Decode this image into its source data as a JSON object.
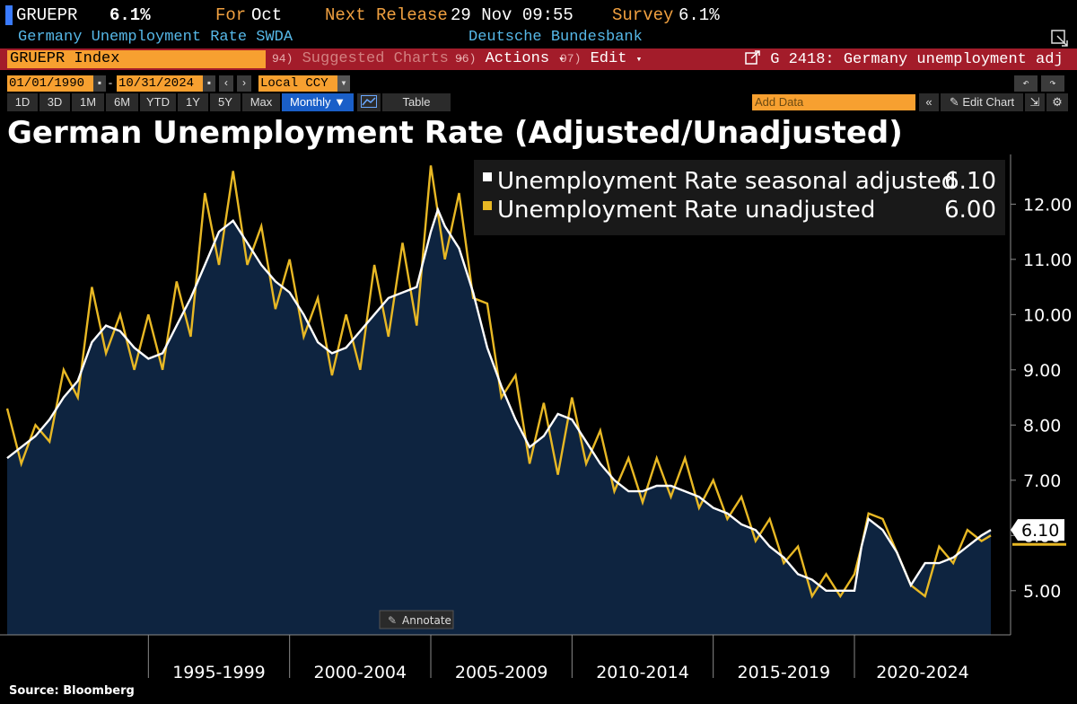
{
  "header": {
    "ticker": "GRUEPR",
    "last_value": "6.1%",
    "for_label": "For",
    "for_value": "Oct",
    "next_release_label": "Next Release",
    "next_release_value": "29 Nov 09:55",
    "survey_label": "Survey",
    "survey_value": "6.1%",
    "description": "Germany Unemployment Rate SWDA",
    "source_name": "Deutsche Bundesbank"
  },
  "command_bar": {
    "security": "GRUEPR Index",
    "suggested_num": "94)",
    "suggested_label": "Suggested Charts",
    "actions_num": "96)",
    "actions_label": "Actions",
    "edit_num": "97)",
    "edit_label": "Edit",
    "graph_label": "G 2418: Germany unemployment adj"
  },
  "date_bar": {
    "start": "01/01/1990",
    "end": "10/31/2024",
    "currency": "Local CCY"
  },
  "period_bar": {
    "periods": [
      "1D",
      "3D",
      "1M",
      "6M",
      "YTD",
      "1Y",
      "5Y",
      "Max"
    ],
    "frequency": "Monthly",
    "table_label": "Table",
    "add_data_placeholder": "Add Data",
    "edit_chart_label": "Edit Chart"
  },
  "annotate_label": "Annotate",
  "source": "Source: Bloomberg",
  "colors": {
    "adjusted": "#ffffff",
    "unadjusted": "#e8b824",
    "area_fill": "#0e2440",
    "command_bar": "#a31c2a",
    "field": "#f7a030"
  },
  "chart_data": {
    "type": "line",
    "title": "German Unemployment Rate (Adjusted/Unadjusted)",
    "x_range": [
      1990.0,
      2024.83
    ],
    "ylim": [
      4.2,
      12.9
    ],
    "y_ticks": [
      5.0,
      6.0,
      7.0,
      8.0,
      9.0,
      10.0,
      11.0,
      12.0
    ],
    "x_tick_labels": [
      "1995-1999",
      "2000-2004",
      "2005-2009",
      "2010-2014",
      "2015-2019",
      "2020-2024"
    ],
    "x_tick_boundaries": [
      1995,
      2000,
      2005,
      2010,
      2015,
      2020
    ],
    "legend_position": "top-right",
    "grid": false,
    "last_value_label": "6.10",
    "series": [
      {
        "name": "Unemployment Rate seasonal adjusted",
        "last": "6.10",
        "color": "#ffffff",
        "area": true,
        "points": [
          [
            1990.0,
            7.4
          ],
          [
            1990.5,
            7.6
          ],
          [
            1991.0,
            7.8
          ],
          [
            1991.5,
            8.1
          ],
          [
            1992.0,
            8.5
          ],
          [
            1992.5,
            8.8
          ],
          [
            1993.0,
            9.5
          ],
          [
            1993.5,
            9.8
          ],
          [
            1994.0,
            9.7
          ],
          [
            1994.5,
            9.4
          ],
          [
            1995.0,
            9.2
          ],
          [
            1995.5,
            9.3
          ],
          [
            1996.0,
            9.8
          ],
          [
            1996.5,
            10.3
          ],
          [
            1997.0,
            10.9
          ],
          [
            1997.5,
            11.5
          ],
          [
            1998.0,
            11.7
          ],
          [
            1998.5,
            11.3
          ],
          [
            1999.0,
            10.9
          ],
          [
            1999.5,
            10.6
          ],
          [
            2000.0,
            10.4
          ],
          [
            2000.5,
            10.0
          ],
          [
            2001.0,
            9.5
          ],
          [
            2001.5,
            9.3
          ],
          [
            2002.0,
            9.4
          ],
          [
            2002.5,
            9.7
          ],
          [
            2003.0,
            10.0
          ],
          [
            2003.5,
            10.3
          ],
          [
            2004.0,
            10.4
          ],
          [
            2004.5,
            10.5
          ],
          [
            2005.0,
            11.5
          ],
          [
            2005.25,
            11.9
          ],
          [
            2005.5,
            11.6
          ],
          [
            2006.0,
            11.2
          ],
          [
            2006.5,
            10.4
          ],
          [
            2007.0,
            9.4
          ],
          [
            2007.5,
            8.7
          ],
          [
            2008.0,
            8.1
          ],
          [
            2008.5,
            7.6
          ],
          [
            2009.0,
            7.8
          ],
          [
            2009.5,
            8.2
          ],
          [
            2010.0,
            8.1
          ],
          [
            2010.5,
            7.7
          ],
          [
            2011.0,
            7.3
          ],
          [
            2011.5,
            7.0
          ],
          [
            2012.0,
            6.8
          ],
          [
            2012.5,
            6.8
          ],
          [
            2013.0,
            6.9
          ],
          [
            2013.5,
            6.9
          ],
          [
            2014.0,
            6.8
          ],
          [
            2014.5,
            6.7
          ],
          [
            2015.0,
            6.5
          ],
          [
            2015.5,
            6.4
          ],
          [
            2016.0,
            6.2
          ],
          [
            2016.5,
            6.1
          ],
          [
            2017.0,
            5.8
          ],
          [
            2017.5,
            5.6
          ],
          [
            2018.0,
            5.3
          ],
          [
            2018.5,
            5.2
          ],
          [
            2019.0,
            5.0
          ],
          [
            2019.5,
            5.0
          ],
          [
            2020.0,
            5.0
          ],
          [
            2020.25,
            5.8
          ],
          [
            2020.5,
            6.3
          ],
          [
            2021.0,
            6.1
          ],
          [
            2021.5,
            5.7
          ],
          [
            2022.0,
            5.1
          ],
          [
            2022.5,
            5.5
          ],
          [
            2023.0,
            5.5
          ],
          [
            2023.5,
            5.6
          ],
          [
            2024.0,
            5.8
          ],
          [
            2024.5,
            6.0
          ],
          [
            2024.83,
            6.1
          ]
        ]
      },
      {
        "name": "Unemployment Rate unadjusted",
        "last": "6.00",
        "color": "#e8b824",
        "area": false,
        "points": [
          [
            1990.0,
            8.3
          ],
          [
            1990.5,
            7.3
          ],
          [
            1991.0,
            8.0
          ],
          [
            1991.5,
            7.7
          ],
          [
            1992.0,
            9.0
          ],
          [
            1992.5,
            8.5
          ],
          [
            1993.0,
            10.5
          ],
          [
            1993.5,
            9.3
          ],
          [
            1994.0,
            10.0
          ],
          [
            1994.5,
            9.0
          ],
          [
            1995.0,
            10.0
          ],
          [
            1995.5,
            9.0
          ],
          [
            1996.0,
            10.6
          ],
          [
            1996.5,
            9.6
          ],
          [
            1997.0,
            12.2
          ],
          [
            1997.5,
            10.9
          ],
          [
            1998.0,
            12.6
          ],
          [
            1998.5,
            10.9
          ],
          [
            1999.0,
            11.6
          ],
          [
            1999.5,
            10.1
          ],
          [
            2000.0,
            11.0
          ],
          [
            2000.5,
            9.6
          ],
          [
            2001.0,
            10.3
          ],
          [
            2001.5,
            8.9
          ],
          [
            2002.0,
            10.0
          ],
          [
            2002.5,
            9.0
          ],
          [
            2003.0,
            10.9
          ],
          [
            2003.5,
            9.6
          ],
          [
            2004.0,
            11.3
          ],
          [
            2004.5,
            9.8
          ],
          [
            2005.0,
            12.7
          ],
          [
            2005.5,
            11.0
          ],
          [
            2006.0,
            12.2
          ],
          [
            2006.5,
            10.3
          ],
          [
            2007.0,
            10.2
          ],
          [
            2007.5,
            8.5
          ],
          [
            2008.0,
            8.9
          ],
          [
            2008.5,
            7.3
          ],
          [
            2009.0,
            8.4
          ],
          [
            2009.5,
            7.1
          ],
          [
            2010.0,
            8.5
          ],
          [
            2010.5,
            7.3
          ],
          [
            2011.0,
            7.9
          ],
          [
            2011.5,
            6.8
          ],
          [
            2012.0,
            7.4
          ],
          [
            2012.5,
            6.6
          ],
          [
            2013.0,
            7.4
          ],
          [
            2013.5,
            6.7
          ],
          [
            2014.0,
            7.4
          ],
          [
            2014.5,
            6.5
          ],
          [
            2015.0,
            7.0
          ],
          [
            2015.5,
            6.3
          ],
          [
            2016.0,
            6.7
          ],
          [
            2016.5,
            5.9
          ],
          [
            2017.0,
            6.3
          ],
          [
            2017.5,
            5.5
          ],
          [
            2018.0,
            5.8
          ],
          [
            2018.5,
            4.9
          ],
          [
            2019.0,
            5.3
          ],
          [
            2019.5,
            4.9
          ],
          [
            2020.0,
            5.3
          ],
          [
            2020.25,
            5.8
          ],
          [
            2020.5,
            6.4
          ],
          [
            2021.0,
            6.3
          ],
          [
            2021.5,
            5.7
          ],
          [
            2022.0,
            5.1
          ],
          [
            2022.5,
            4.9
          ],
          [
            2023.0,
            5.8
          ],
          [
            2023.5,
            5.5
          ],
          [
            2024.0,
            6.1
          ],
          [
            2024.5,
            5.9
          ],
          [
            2024.83,
            6.0
          ]
        ]
      }
    ]
  }
}
